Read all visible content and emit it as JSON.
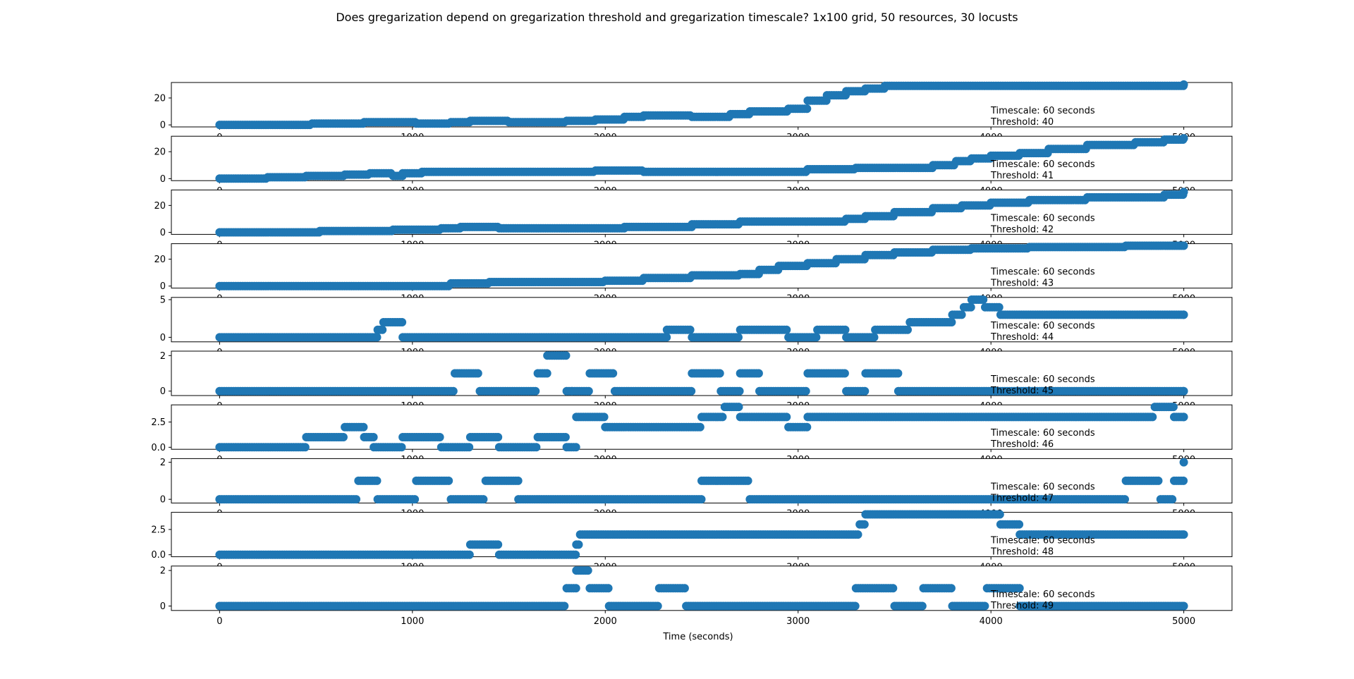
{
  "title": "Does gregarization depend on gregarization threshold and gregarization timescale? 1x100 grid, 50 resources, 30 locusts",
  "xlabel": "Time (seconds)",
  "colors": {
    "points": "#1f77b4",
    "axes": "#000000"
  },
  "chart_data": [
    {
      "type": "scatter",
      "annotation": [
        "Timescale: 60 seconds",
        "Threshold: 40"
      ],
      "xlim": [
        -250,
        5250
      ],
      "ylim": [
        -1.5,
        31.5
      ],
      "xticks": [
        0,
        1000,
        2000,
        3000,
        4000,
        5000
      ],
      "xtick_labels": [
        "0",
        "1000",
        "2000",
        "3000",
        "4000",
        "5000"
      ],
      "yticks": [
        0,
        20
      ],
      "ytick_labels": [
        "0",
        "20"
      ],
      "x": [
        0,
        480,
        750,
        1020,
        1200,
        1300,
        1500,
        1800,
        1950,
        2100,
        2200,
        2450,
        2650,
        2750,
        2950,
        3050,
        3150,
        3250,
        3350,
        3450,
        5000
      ],
      "y": [
        0,
        1,
        2,
        1,
        2,
        3,
        2,
        3,
        4,
        6,
        7,
        6,
        8,
        10,
        12,
        18,
        22,
        25,
        27,
        29,
        30
      ]
    },
    {
      "type": "scatter",
      "annotation": [
        "Timescale: 60 seconds",
        "Threshold: 41"
      ],
      "xlim": [
        -250,
        5250
      ],
      "ylim": [
        -1.5,
        31.5
      ],
      "xticks": [
        0,
        1000,
        2000,
        3000,
        4000,
        5000
      ],
      "xtick_labels": [
        "0",
        "1000",
        "2000",
        "3000",
        "4000",
        "5000"
      ],
      "yticks": [
        0,
        20
      ],
      "ytick_labels": [
        "0",
        "20"
      ],
      "x": [
        0,
        250,
        450,
        650,
        780,
        900,
        950,
        1050,
        1950,
        2200,
        3050,
        3300,
        3700,
        3820,
        3900,
        4000,
        4150,
        4300,
        4500,
        4750,
        4900,
        5000
      ],
      "y": [
        0,
        1,
        2,
        3,
        4,
        2,
        4,
        5,
        6,
        5,
        7,
        8,
        10,
        13,
        15,
        17,
        19,
        22,
        25,
        27,
        29,
        30
      ]
    },
    {
      "type": "scatter",
      "annotation": [
        "Timescale: 60 seconds",
        "Threshold: 42"
      ],
      "xlim": [
        -250,
        5250
      ],
      "ylim": [
        -1.5,
        31.5
      ],
      "xticks": [
        0,
        1000,
        2000,
        3000,
        4000,
        5000
      ],
      "xtick_labels": [
        "0",
        "1000",
        "2000",
        "3000",
        "4000",
        "5000"
      ],
      "yticks": [
        0,
        20
      ],
      "ytick_labels": [
        "0",
        "20"
      ],
      "x": [
        0,
        520,
        900,
        1150,
        1250,
        1450,
        2100,
        2450,
        2700,
        3250,
        3350,
        3500,
        3700,
        3850,
        4000,
        4200,
        4500,
        4900,
        5000
      ],
      "y": [
        0,
        1,
        2,
        3,
        4,
        3,
        4,
        6,
        8,
        10,
        12,
        15,
        18,
        20,
        22,
        24,
        26,
        28,
        30
      ]
    },
    {
      "type": "scatter",
      "annotation": [
        "Timescale: 60 seconds",
        "Threshold: 43"
      ],
      "xlim": [
        -250,
        5250
      ],
      "ylim": [
        -1.5,
        31.5
      ],
      "xticks": [
        0,
        1000,
        2000,
        3000,
        4000,
        5000
      ],
      "xtick_labels": [
        "0",
        "1000",
        "2000",
        "3000",
        "4000",
        "5000"
      ],
      "yticks": [
        0,
        20
      ],
      "ytick_labels": [
        "0",
        "20"
      ],
      "x": [
        0,
        1200,
        1400,
        2000,
        2200,
        2450,
        2700,
        2800,
        2900,
        3050,
        3200,
        3350,
        3500,
        3700,
        3900,
        4200,
        4700,
        5000
      ],
      "y": [
        0,
        2,
        3,
        4,
        6,
        8,
        9,
        12,
        15,
        17,
        20,
        23,
        25,
        27,
        28,
        29,
        30,
        30
      ]
    },
    {
      "type": "scatter",
      "annotation": [
        "Timescale: 60 seconds",
        "Threshold: 44"
      ],
      "xlim": [
        -250,
        5250
      ],
      "ylim": [
        -0.6,
        5.3
      ],
      "xticks": [
        0,
        1000,
        2000,
        3000,
        4000,
        5000
      ],
      "xtick_labels": [
        "0",
        "1000",
        "2000",
        "3000",
        "4000",
        "5000"
      ],
      "yticks": [
        0,
        5
      ],
      "ytick_labels": [
        "0",
        "5"
      ],
      "x": [
        0,
        820,
        850,
        950,
        2320,
        2450,
        2700,
        2950,
        3100,
        3250,
        3400,
        3580,
        3800,
        3860,
        3900,
        3970,
        4050,
        5000
      ],
      "y": [
        0,
        1,
        2,
        0,
        1,
        0,
        1,
        0,
        1,
        0,
        1,
        2,
        3,
        4,
        5,
        4,
        3,
        3
      ]
    },
    {
      "type": "scatter",
      "annotation": [
        "Timescale: 60 seconds",
        "Threshold: 45"
      ],
      "xlim": [
        -250,
        5250
      ],
      "ylim": [
        -0.25,
        2.25
      ],
      "xticks": [
        0,
        1000,
        2000,
        3000,
        4000,
        5000
      ],
      "xtick_labels": [
        "0",
        "1000",
        "2000",
        "3000",
        "4000",
        "5000"
      ],
      "yticks": [
        0,
        2
      ],
      "ytick_labels": [
        "0",
        "2"
      ],
      "x": [
        0,
        1220,
        1350,
        1650,
        1700,
        1800,
        1830,
        1920,
        2050,
        2450,
        2600,
        2700,
        2800,
        3050,
        3250,
        3350,
        3520,
        5000
      ],
      "y": [
        0,
        1,
        0,
        1,
        2,
        0,
        0,
        1,
        0,
        1,
        0,
        1,
        0,
        1,
        0,
        1,
        0,
        0
      ]
    },
    {
      "type": "scatter",
      "annotation": [
        "Timescale: 60 seconds",
        "Threshold: 46"
      ],
      "xlim": [
        -250,
        5250
      ],
      "ylim": [
        -0.2,
        4.2
      ],
      "xticks": [
        0,
        1000,
        2000,
        3000,
        4000,
        5000
      ],
      "xtick_labels": [
        "0",
        "1000",
        "2000",
        "3000",
        "4000",
        "5000"
      ],
      "yticks": [
        0,
        2.5
      ],
      "ytick_labels": [
        "0.0",
        "2.5"
      ],
      "x": [
        0,
        450,
        650,
        750,
        800,
        950,
        1150,
        1300,
        1450,
        1650,
        1800,
        1850,
        2000,
        2500,
        2620,
        2700,
        2950,
        3050,
        3350,
        4850,
        4950,
        5000
      ],
      "y": [
        0,
        1,
        2,
        1,
        0,
        1,
        0,
        1,
        0,
        1,
        0,
        3,
        2,
        3,
        4,
        3,
        2,
        3,
        3,
        4,
        3,
        3
      ]
    },
    {
      "type": "scatter",
      "annotation": [
        "Timescale: 60 seconds",
        "Threshold: 47"
      ],
      "xlim": [
        -250,
        5250
      ],
      "ylim": [
        -0.2,
        2.2
      ],
      "xticks": [
        0,
        1000,
        2000,
        3000,
        4000,
        5000
      ],
      "xtick_labels": [
        "0",
        "1000",
        "2000",
        "3000",
        "4000",
        "5000"
      ],
      "yticks": [
        0,
        2
      ],
      "ytick_labels": [
        "0",
        "2"
      ],
      "x": [
        0,
        720,
        820,
        1020,
        1200,
        1380,
        1550,
        2500,
        2750,
        4700,
        4880,
        4950,
        5000
      ],
      "y": [
        0,
        1,
        0,
        1,
        0,
        1,
        0,
        1,
        0,
        1,
        0,
        1,
        2
      ]
    },
    {
      "type": "scatter",
      "annotation": [
        "Timescale: 60 seconds",
        "Threshold: 48"
      ],
      "xlim": [
        -250,
        5250
      ],
      "ylim": [
        -0.2,
        4.2
      ],
      "xticks": [
        0,
        1000,
        2000,
        3000,
        4000,
        5000
      ],
      "xtick_labels": [
        "0",
        "1000",
        "2000",
        "3000",
        "4000",
        "5000"
      ],
      "yticks": [
        0,
        2.5
      ],
      "ytick_labels": [
        "0.0",
        "2.5"
      ],
      "x": [
        0,
        1300,
        1450,
        1850,
        1870,
        3320,
        3350,
        4050,
        4150,
        5000
      ],
      "y": [
        0,
        1,
        0,
        1,
        2,
        3,
        4,
        3,
        2,
        2
      ]
    },
    {
      "type": "scatter",
      "annotation": [
        "Timescale: 60 seconds",
        "Threshold: 49"
      ],
      "xlim": [
        -250,
        5250
      ],
      "ylim": [
        -0.25,
        2.25
      ],
      "xticks": [
        0,
        1000,
        2000,
        3000,
        4000,
        5000
      ],
      "xtick_labels": [
        "0",
        "1000",
        "2000",
        "3000",
        "4000",
        "5000"
      ],
      "yticks": [
        0,
        2
      ],
      "ytick_labels": [
        "0",
        "2"
      ],
      "x": [
        0,
        1800,
        1850,
        1920,
        2020,
        2280,
        2420,
        3300,
        3500,
        3650,
        3800,
        3980,
        4150,
        5000
      ],
      "y": [
        0,
        1,
        2,
        1,
        0,
        1,
        0,
        1,
        0,
        1,
        0,
        1,
        0,
        0
      ]
    }
  ]
}
